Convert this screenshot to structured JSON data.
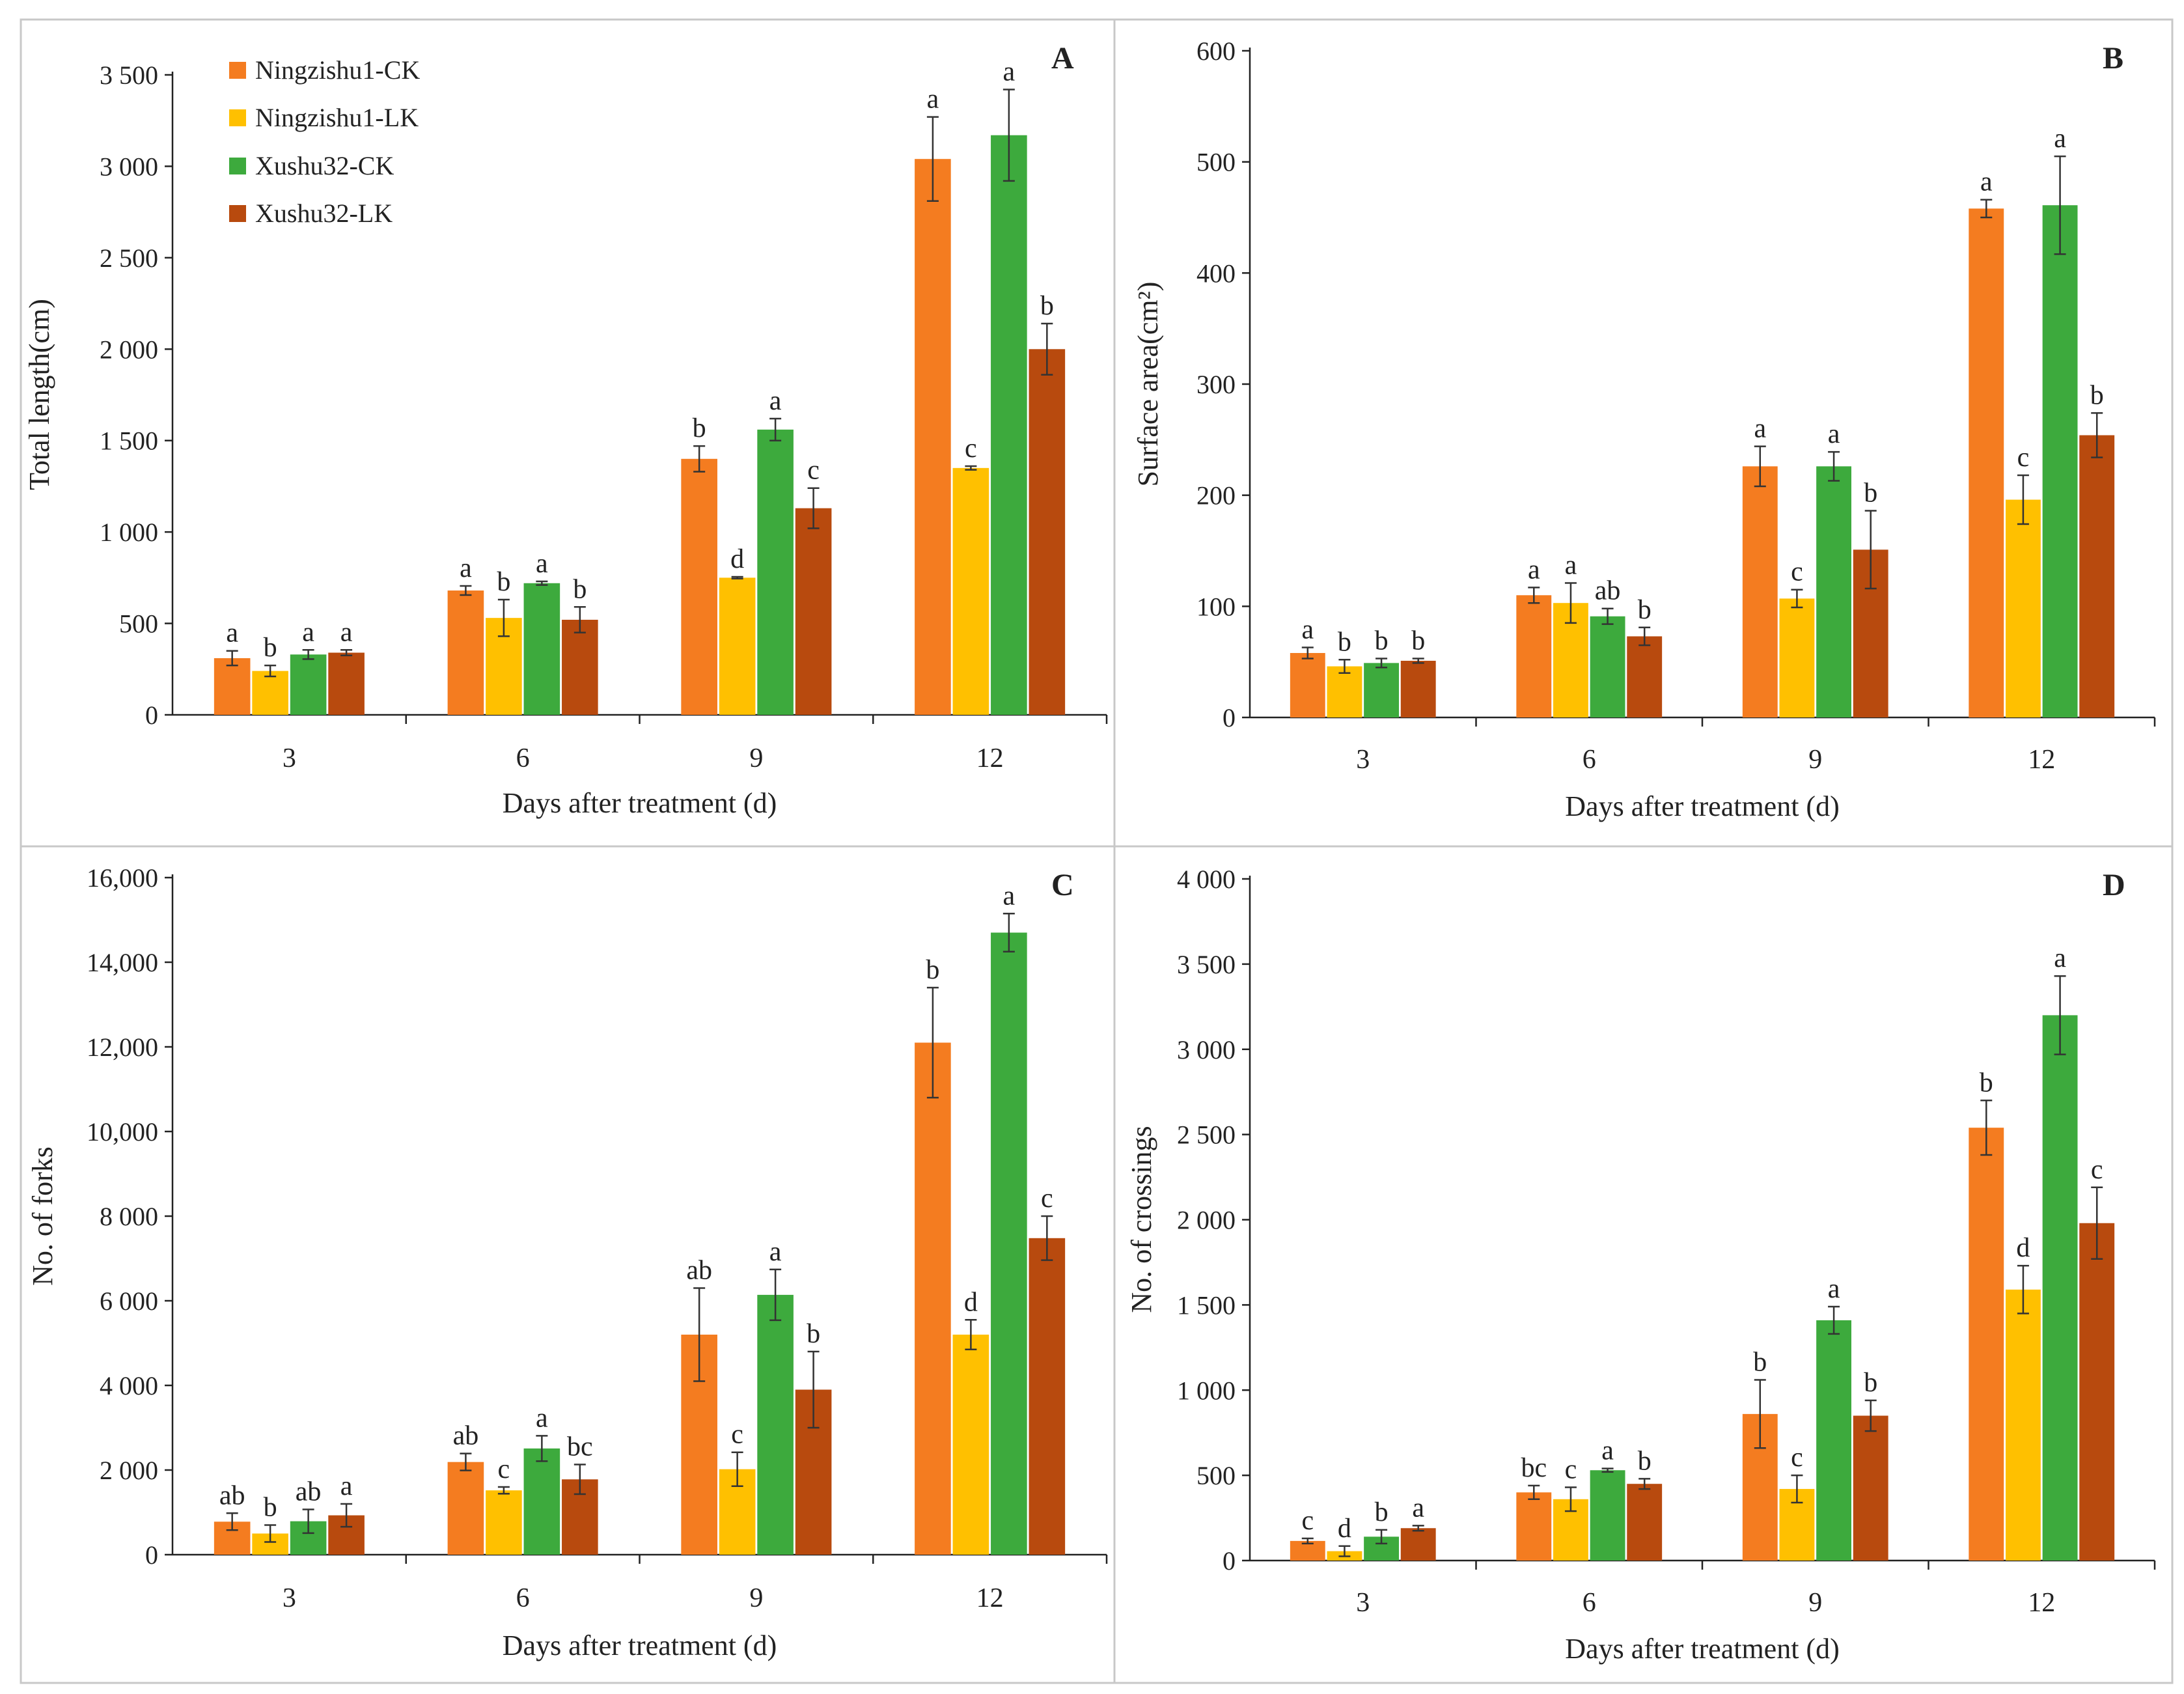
{
  "legend": [
    {
      "name": "Ningzishu1-CK",
      "color": "#F47C20"
    },
    {
      "name": "Ningzishu1-LK",
      "color": "#FFC000"
    },
    {
      "name": "Xushu32-CK",
      "color": "#3DAA3D"
    },
    {
      "name": "Xushu32-LK",
      "color": "#B84A0E"
    }
  ],
  "chart_data": [
    {
      "type": "bar",
      "panel": "A",
      "title": "",
      "xlabel": "Days after treatment (d)",
      "ylabel": "Total length(cm)",
      "categories": [
        "3",
        "6",
        "9",
        "12"
      ],
      "ylim": [
        0,
        3500
      ],
      "yticks": [
        0,
        500,
        1000,
        1500,
        2000,
        2500,
        3000,
        3500
      ],
      "ytick_labels": [
        "0",
        "500",
        "1 000",
        "1 500",
        "2 000",
        "2 500",
        "3 000",
        "3 500"
      ],
      "series": [
        {
          "name": "Ningzishu1-CK",
          "values": [
            310,
            680,
            1400,
            3040
          ],
          "errors": [
            40,
            25,
            70,
            230
          ],
          "letters": [
            "a",
            "a",
            "b",
            "a"
          ]
        },
        {
          "name": "Ningzishu1-LK",
          "values": [
            240,
            530,
            750,
            1350
          ],
          "errors": [
            30,
            100,
            5,
            10
          ],
          "letters": [
            "b",
            "b",
            "d",
            "c"
          ]
        },
        {
          "name": "Xushu32-CK",
          "values": [
            330,
            720,
            1560,
            3170
          ],
          "errors": [
            25,
            10,
            60,
            250
          ],
          "letters": [
            "a",
            "a",
            "a",
            "a"
          ]
        },
        {
          "name": "Xushu32-LK",
          "values": [
            340,
            520,
            1130,
            2000
          ],
          "errors": [
            15,
            70,
            110,
            140
          ],
          "letters": [
            "a",
            "b",
            "c",
            "b"
          ]
        }
      ]
    },
    {
      "type": "bar",
      "panel": "B",
      "title": "",
      "xlabel": "Days after treatment (d)",
      "ylabel": "Surface area(cm²)",
      "categories": [
        "3",
        "6",
        "9",
        "12"
      ],
      "ylim": [
        0,
        600
      ],
      "yticks": [
        0,
        100,
        200,
        300,
        400,
        500,
        600
      ],
      "ytick_labels": [
        "0",
        "100",
        "200",
        "300",
        "400",
        "500",
        "600"
      ],
      "series": [
        {
          "name": "Ningzishu1-CK",
          "values": [
            58,
            110,
            226,
            458
          ],
          "errors": [
            5,
            7,
            18,
            8
          ],
          "letters": [
            "a",
            "a",
            "a",
            "a"
          ]
        },
        {
          "name": "Ningzishu1-LK",
          "values": [
            46,
            103,
            107,
            196
          ],
          "errors": [
            6,
            18,
            8,
            22
          ],
          "letters": [
            "b",
            "a",
            "c",
            "c"
          ]
        },
        {
          "name": "Xushu32-CK",
          "values": [
            49,
            91,
            226,
            461
          ],
          "errors": [
            4,
            7,
            13,
            44
          ],
          "letters": [
            "b",
            "ab",
            "a",
            "a"
          ]
        },
        {
          "name": "Xushu32-LK",
          "values": [
            51,
            73,
            151,
            254
          ],
          "errors": [
            2,
            8,
            35,
            20
          ],
          "letters": [
            "b",
            "b",
            "b",
            "b"
          ]
        }
      ]
    },
    {
      "type": "bar",
      "panel": "C",
      "title": "",
      "xlabel": "Days after treatment (d)",
      "ylabel": "No. of forks",
      "categories": [
        "3",
        "6",
        "9",
        "12"
      ],
      "ylim": [
        0,
        16000
      ],
      "yticks": [
        0,
        2000,
        4000,
        6000,
        8000,
        10000,
        12000,
        14000,
        16000
      ],
      "ytick_labels": [
        "0",
        "2 000",
        "4 000",
        "6 000",
        "8 000",
        "10,000",
        "12,000",
        "14,000",
        "16,000"
      ],
      "series": [
        {
          "name": "Ningzishu1-CK",
          "values": [
            780,
            2190,
            5200,
            12100
          ],
          "errors": [
            200,
            200,
            1100,
            1300
          ],
          "letters": [
            "ab",
            "ab",
            "ab",
            "b"
          ]
        },
        {
          "name": "Ningzishu1-LK",
          "values": [
            500,
            1520,
            2020,
            5200
          ],
          "errors": [
            200,
            80,
            400,
            350
          ],
          "letters": [
            "b",
            "c",
            "c",
            "d"
          ]
        },
        {
          "name": "Xushu32-CK",
          "values": [
            790,
            2510,
            6140,
            14700
          ],
          "errors": [
            280,
            300,
            600,
            450
          ],
          "letters": [
            "ab",
            "a",
            "a",
            "a"
          ]
        },
        {
          "name": "Xushu32-LK",
          "values": [
            930,
            1780,
            3900,
            7480
          ],
          "errors": [
            270,
            350,
            900,
            520
          ],
          "letters": [
            "a",
            "bc",
            "b",
            "c"
          ]
        }
      ]
    },
    {
      "type": "bar",
      "panel": "D",
      "title": "",
      "xlabel": "Days after treatment (d)",
      "ylabel": "No. of crossings",
      "categories": [
        "3",
        "6",
        "9",
        "12"
      ],
      "ylim": [
        0,
        4000
      ],
      "yticks": [
        0,
        500,
        1000,
        1500,
        2000,
        2500,
        3000,
        3500,
        4000
      ],
      "ytick_labels": [
        "0",
        "500",
        "1 000",
        "1 500",
        "2 000",
        "2 500",
        "3 000",
        "3 500",
        "4 000"
      ],
      "series": [
        {
          "name": "Ningzishu1-CK",
          "values": [
            115,
            400,
            860,
            2540
          ],
          "errors": [
            15,
            40,
            200,
            160
          ],
          "letters": [
            "c",
            "bc",
            "b",
            "b"
          ]
        },
        {
          "name": "Ningzishu1-LK",
          "values": [
            55,
            360,
            420,
            1590
          ],
          "errors": [
            30,
            70,
            80,
            140
          ],
          "letters": [
            "d",
            "c",
            "c",
            "d"
          ]
        },
        {
          "name": "Xushu32-CK",
          "values": [
            140,
            530,
            1410,
            3200
          ],
          "errors": [
            40,
            10,
            80,
            230
          ],
          "letters": [
            "b",
            "a",
            "a",
            "a"
          ]
        },
        {
          "name": "Xushu32-LK",
          "values": [
            190,
            450,
            850,
            1980
          ],
          "errors": [
            15,
            30,
            90,
            210
          ],
          "letters": [
            "a",
            "b",
            "b",
            "c"
          ]
        }
      ]
    }
  ],
  "panel_labels": [
    "A",
    "B",
    "C",
    "D"
  ]
}
